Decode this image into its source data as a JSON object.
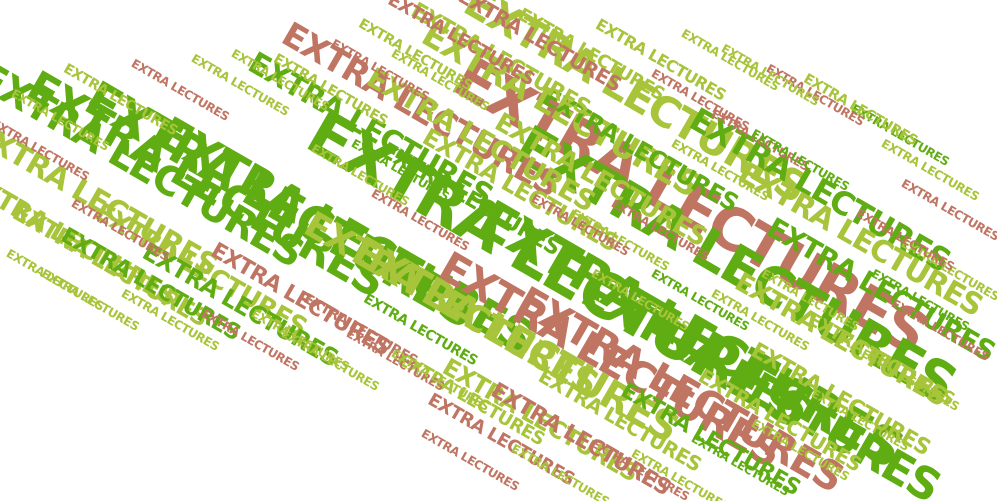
{
  "word_cloud": {
    "word": "EXTRA LECTURES",
    "colors": [
      "#5fad12",
      "#a7c43b",
      "#c07563"
    ]
  }
}
